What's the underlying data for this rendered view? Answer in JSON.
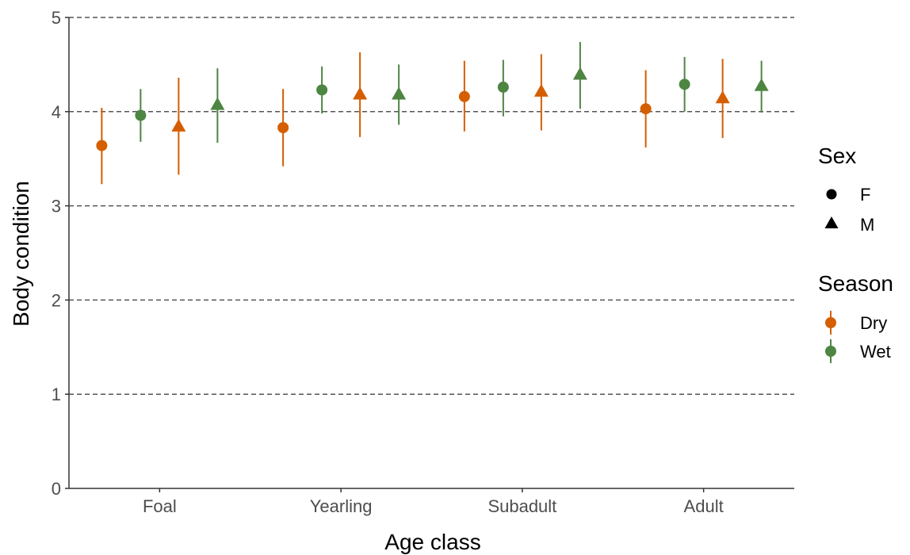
{
  "chart_data": {
    "type": "scatter",
    "subtype": "pointrange",
    "xlabel": "Age class",
    "ylabel": "Body condition",
    "categories": [
      "Foal",
      "Yearling",
      "Subadult",
      "Adult"
    ],
    "ylim": [
      0,
      5
    ],
    "yticks": [
      0,
      1,
      2,
      3,
      4,
      5
    ],
    "grid": "horizontal dashed major",
    "legend_position": "right",
    "legends": [
      {
        "title": "Sex",
        "entries": [
          {
            "label": "F",
            "shape": "circle"
          },
          {
            "label": "M",
            "shape": "triangle"
          }
        ]
      },
      {
        "title": "Season",
        "entries": [
          {
            "label": "Dry",
            "color": "#D55E00"
          },
          {
            "label": "Wet",
            "color": "#4E8542"
          }
        ]
      }
    ],
    "colors": {
      "Dry": "#D55E00",
      "Wet": "#4E8542"
    },
    "series": [
      {
        "sex": "F",
        "season": "Dry",
        "values": [
          3.64,
          3.83,
          4.16,
          4.03
        ],
        "lower": [
          3.23,
          3.42,
          3.79,
          3.62
        ],
        "upper": [
          4.04,
          4.24,
          4.54,
          4.44
        ]
      },
      {
        "sex": "F",
        "season": "Wet",
        "values": [
          3.96,
          4.23,
          4.26,
          4.29
        ],
        "lower": [
          3.68,
          3.98,
          3.95,
          4.0
        ],
        "upper": [
          4.24,
          4.48,
          4.55,
          4.58
        ]
      },
      {
        "sex": "M",
        "season": "Dry",
        "values": [
          3.84,
          4.18,
          4.21,
          4.14
        ],
        "lower": [
          3.33,
          3.73,
          3.8,
          3.72
        ],
        "upper": [
          4.36,
          4.63,
          4.61,
          4.56
        ]
      },
      {
        "sex": "M",
        "season": "Wet",
        "values": [
          4.07,
          4.18,
          4.39,
          4.27
        ],
        "lower": [
          3.67,
          3.86,
          4.03,
          3.99
        ],
        "upper": [
          4.46,
          4.5,
          4.74,
          4.54
        ]
      }
    ]
  }
}
